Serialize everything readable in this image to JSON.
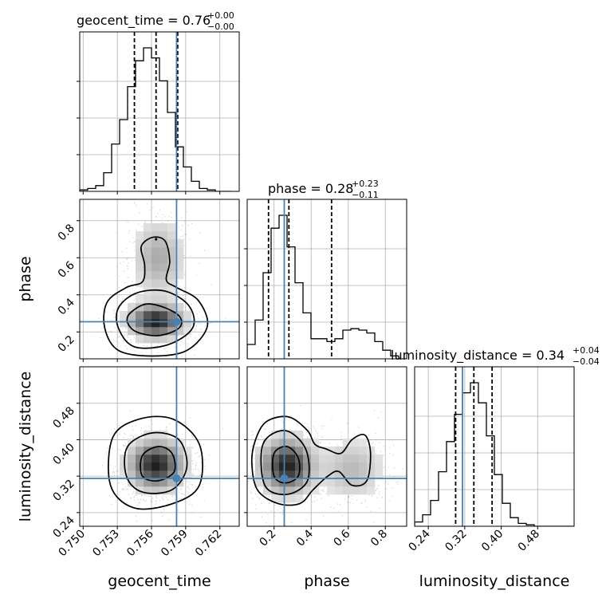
{
  "chart_data": {
    "type": "corner",
    "parameters": [
      "geocent_time",
      "phase",
      "luminosity_distance"
    ],
    "titles": [
      {
        "base": "geocent_time = 0.76",
        "plus": "+0.00",
        "minus": "−0.00"
      },
      {
        "base": "phase = 0.28",
        "plus": "+0.23",
        "minus": "−0.11"
      },
      {
        "base": "luminosity_distance = 0.34",
        "plus": "+0.04",
        "minus": "−0.04"
      }
    ],
    "truths": [
      0.7582,
      0.255,
      0.315
    ],
    "ranges": [
      [
        0.7497,
        0.7637
      ],
      [
        0.055,
        0.915
      ],
      [
        0.21,
        0.56
      ]
    ],
    "ticks": [
      {
        "values": [
          0.75,
          0.753,
          0.756,
          0.759,
          0.762
        ],
        "labels": [
          "0.750",
          "0.753",
          "0.756",
          "0.759",
          "0.762"
        ]
      },
      {
        "values": [
          0.2,
          0.4,
          0.6,
          0.8
        ],
        "labels": [
          "0.2",
          "0.4",
          "0.6",
          "0.8"
        ]
      },
      {
        "values": [
          0.24,
          0.32,
          0.4,
          0.48
        ],
        "labels": [
          "0.24",
          "0.32",
          "0.40",
          "0.48"
        ]
      }
    ],
    "histograms": [
      {
        "edges": [
          0.7497,
          0.7504,
          0.7511,
          0.7518,
          0.7525,
          0.7532,
          0.7539,
          0.7546,
          0.7553,
          0.756,
          0.7567,
          0.7574,
          0.7581,
          0.7588,
          0.7595,
          0.7602,
          0.7609,
          0.7616,
          0.7623,
          0.763
        ],
        "counts": [
          0.01,
          0.02,
          0.04,
          0.13,
          0.33,
          0.5,
          0.73,
          0.91,
          1.0,
          0.93,
          0.77,
          0.55,
          0.31,
          0.17,
          0.07,
          0.02,
          0.01,
          0.0,
          0.0
        ],
        "quantiles": [
          0.7545,
          0.7564,
          0.7583
        ]
      },
      {
        "edges": [
          0.055,
          0.098,
          0.141,
          0.184,
          0.227,
          0.27,
          0.313,
          0.356,
          0.399,
          0.442,
          0.485,
          0.528,
          0.571,
          0.614,
          0.657,
          0.7,
          0.743,
          0.786,
          0.829,
          0.872,
          0.915
        ],
        "counts": [
          0.1,
          0.27,
          0.6,
          0.91,
          1.0,
          0.78,
          0.53,
          0.32,
          0.14,
          0.14,
          0.12,
          0.14,
          0.2,
          0.21,
          0.2,
          0.18,
          0.12,
          0.06,
          0.02,
          0.0
        ],
        "quantiles": [
          0.17,
          0.28,
          0.51
        ]
      },
      {
        "edges": [
          0.21,
          0.2275,
          0.245,
          0.2625,
          0.28,
          0.2975,
          0.315,
          0.3325,
          0.35,
          0.3675,
          0.385,
          0.4025,
          0.42,
          0.4375,
          0.455,
          0.4725,
          0.49,
          0.5075,
          0.525,
          0.5425,
          0.56
        ],
        "counts": [
          0.03,
          0.08,
          0.18,
          0.38,
          0.59,
          0.78,
          0.93,
          1.0,
          0.86,
          0.63,
          0.36,
          0.16,
          0.06,
          0.02,
          0.01,
          0.0,
          0.0,
          0.0,
          0.0,
          0.0
        ],
        "quantiles": [
          0.3,
          0.34,
          0.38
        ]
      }
    ],
    "joint": [
      {
        "x_param": "geocent_time",
        "y_param": "phase",
        "cores": [
          {
            "cx": 0.7564,
            "cy": 0.26,
            "sx": 0.0014,
            "sy": 0.055,
            "w": 1.0
          },
          {
            "cx": 0.7566,
            "cy": 0.6,
            "sx": 0.0013,
            "sy": 0.12,
            "w": 0.35
          }
        ],
        "contours": [
          [
            [
              0.7541,
              0.3
            ],
            [
              0.7555,
              0.35
            ],
            [
              0.7572,
              0.33
            ],
            [
              0.7585,
              0.28
            ],
            [
              0.7584,
              0.22
            ],
            [
              0.7566,
              0.18
            ],
            [
              0.7547,
              0.2
            ],
            [
              0.7539,
              0.25
            ]
          ],
          [
            [
              0.7531,
              0.33
            ],
            [
              0.7547,
              0.41
            ],
            [
              0.7572,
              0.42
            ],
            [
              0.7593,
              0.34
            ],
            [
              0.7596,
              0.22
            ],
            [
              0.7574,
              0.13
            ],
            [
              0.7545,
              0.12
            ],
            [
              0.7531,
              0.22
            ]
          ],
          [
            [
              0.7521,
              0.36
            ],
            [
              0.7538,
              0.44
            ],
            [
              0.7552,
              0.47
            ],
            [
              0.7554,
              0.56
            ],
            [
              0.7551,
              0.66
            ],
            [
              0.7561,
              0.71
            ],
            [
              0.7572,
              0.69
            ],
            [
              0.7576,
              0.58
            ],
            [
              0.7573,
              0.48
            ],
            [
              0.7582,
              0.44
            ],
            [
              0.7601,
              0.37
            ],
            [
              0.7609,
              0.23
            ],
            [
              0.7591,
              0.1
            ],
            [
              0.7561,
              0.07
            ],
            [
              0.7531,
              0.1
            ],
            [
              0.7519,
              0.22
            ]
          ]
        ],
        "dot": [
          0.7564,
          0.7
        ]
      },
      {
        "x_param": "geocent_time",
        "y_param": "luminosity_distance",
        "cores": [
          {
            "cx": 0.7564,
            "cy": 0.345,
            "sx": 0.0014,
            "sy": 0.032,
            "w": 1.0
          }
        ],
        "contours": [
          [
            [
              0.7552,
              0.365
            ],
            [
              0.7566,
              0.385
            ],
            [
              0.7578,
              0.37
            ],
            [
              0.758,
              0.33
            ],
            [
              0.7566,
              0.31
            ],
            [
              0.7552,
              0.32
            ]
          ],
          [
            [
              0.7539,
              0.385
            ],
            [
              0.7561,
              0.415
            ],
            [
              0.7584,
              0.4
            ],
            [
              0.7591,
              0.34
            ],
            [
              0.7578,
              0.29
            ],
            [
              0.7552,
              0.285
            ],
            [
              0.7538,
              0.32
            ]
          ],
          [
            [
              0.7526,
              0.405
            ],
            [
              0.7549,
              0.445
            ],
            [
              0.7579,
              0.445
            ],
            [
              0.7602,
              0.39
            ],
            [
              0.7602,
              0.3
            ],
            [
              0.7579,
              0.26
            ],
            [
              0.7545,
              0.25
            ],
            [
              0.7524,
              0.3
            ]
          ]
        ],
        "dot": null
      },
      {
        "x_param": "phase",
        "y_param": "luminosity_distance",
        "cores": [
          {
            "cx": 0.27,
            "cy": 0.343,
            "sx": 0.085,
            "sy": 0.035,
            "w": 1.0
          },
          {
            "cx": 0.62,
            "cy": 0.335,
            "sx": 0.1,
            "sy": 0.04,
            "w": 0.28
          }
        ],
        "contours": [
          [
            [
              0.2,
              0.37
            ],
            [
              0.27,
              0.385
            ],
            [
              0.33,
              0.36
            ],
            [
              0.33,
              0.32
            ],
            [
              0.26,
              0.305
            ],
            [
              0.2,
              0.32
            ]
          ],
          [
            [
              0.14,
              0.39
            ],
            [
              0.26,
              0.42
            ],
            [
              0.37,
              0.38
            ],
            [
              0.38,
              0.31
            ],
            [
              0.27,
              0.28
            ],
            [
              0.15,
              0.3
            ]
          ],
          [
            [
              0.1,
              0.4
            ],
            [
              0.16,
              0.44
            ],
            [
              0.28,
              0.45
            ],
            [
              0.38,
              0.42
            ],
            [
              0.42,
              0.39
            ],
            [
              0.48,
              0.38
            ],
            [
              0.56,
              0.37
            ],
            [
              0.62,
              0.4
            ],
            [
              0.69,
              0.41
            ],
            [
              0.72,
              0.37
            ],
            [
              0.7,
              0.31
            ],
            [
              0.62,
              0.3
            ],
            [
              0.55,
              0.33
            ],
            [
              0.49,
              0.32
            ],
            [
              0.41,
              0.29
            ],
            [
              0.34,
              0.26
            ],
            [
              0.22,
              0.26
            ],
            [
              0.11,
              0.29
            ],
            [
              0.08,
              0.35
            ]
          ]
        ],
        "dot": null
      }
    ],
    "colors": {
      "truth": "#4682b4",
      "line": "#000000",
      "grid": "#b0b0b0"
    }
  }
}
